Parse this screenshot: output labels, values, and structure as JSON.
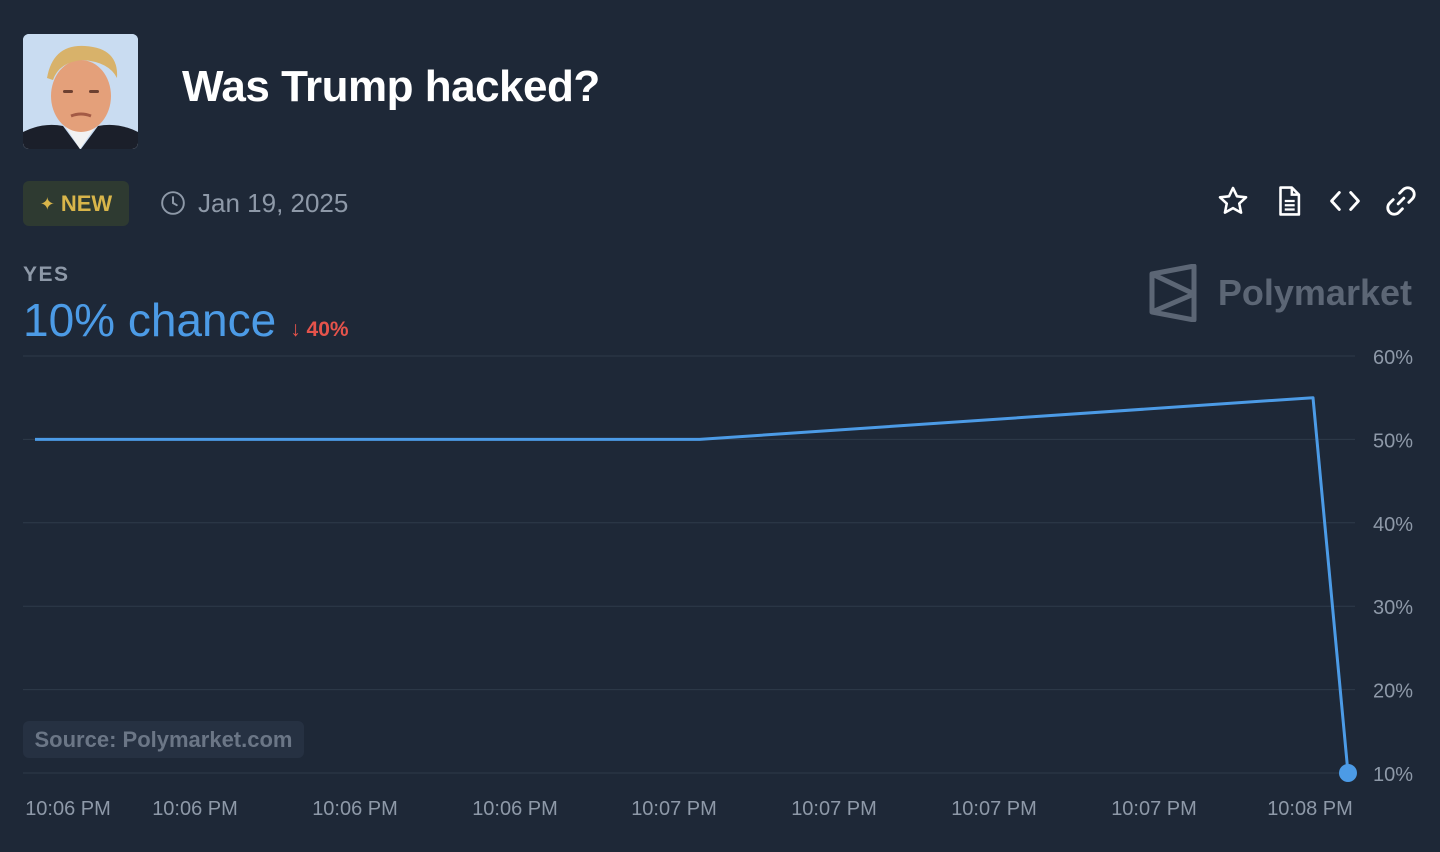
{
  "header": {
    "title": "Was Trump hacked?"
  },
  "meta": {
    "badge_label": "NEW",
    "date": "Jan 19, 2025",
    "actions": [
      "star-icon",
      "document-icon",
      "code-icon",
      "link-icon"
    ]
  },
  "outcome": {
    "label": "YES",
    "chance_text": "10% chance",
    "delta_text": "40%"
  },
  "brand": {
    "name": "Polymarket"
  },
  "source_label": "Source: Polymarket.com",
  "colors": {
    "line": "#4c9be6",
    "delta_down": "#e5534b",
    "badge": "#d8b54a",
    "background": "#1e2837"
  },
  "chart_data": {
    "type": "line",
    "title": "",
    "xlabel": "",
    "ylabel": "",
    "x_ticks": [
      "10:06 PM",
      "10:06 PM",
      "10:06 PM",
      "10:06 PM",
      "10:07 PM",
      "10:07 PM",
      "10:07 PM",
      "10:07 PM",
      "10:08 PM"
    ],
    "y_ticks": [
      "60%",
      "50%",
      "40%",
      "30%",
      "20%",
      "10%"
    ],
    "y_tick_values": [
      60,
      50,
      40,
      30,
      20,
      10
    ],
    "ylim": [
      10,
      60
    ],
    "grid": true,
    "series": [
      {
        "x": [
          0,
          0.52,
          1.0,
          1.045
        ],
        "values": [
          50,
          50,
          55,
          10
        ]
      }
    ],
    "endpoint_marker": true
  }
}
